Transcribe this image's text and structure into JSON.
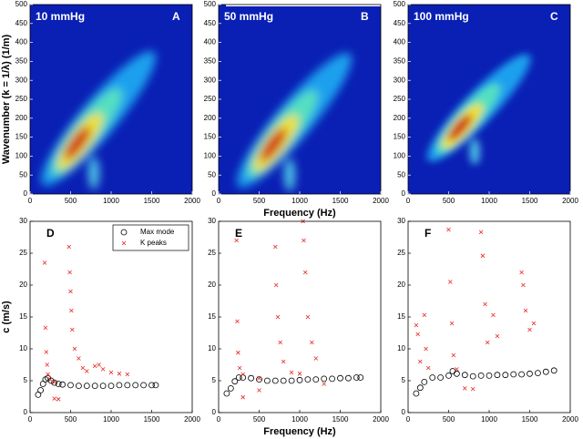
{
  "chart_data": [
    {
      "type": "image",
      "annotation": "10 mmHg",
      "panel_label": "A",
      "ylabel": "Wavenumber (k = 1/λ) (1/m)",
      "xlim": [
        0,
        2000
      ],
      "xticks": [
        0,
        500,
        1000,
        1500,
        2000
      ],
      "ylim": [
        0,
        500
      ],
      "yticks": [
        0,
        50,
        100,
        150,
        200,
        250,
        300,
        350,
        400,
        450,
        500
      ]
    },
    {
      "type": "image",
      "annotation": "50 mmHg",
      "panel_label": "B",
      "xlabel": "Frequency (Hz)",
      "xlim": [
        0,
        2000
      ],
      "xticks": [
        0,
        500,
        1000,
        1500,
        2000
      ],
      "ylim": [
        0,
        500
      ],
      "yticks": [
        0,
        50,
        100,
        150,
        200,
        250,
        300,
        350,
        400,
        450,
        500
      ]
    },
    {
      "type": "image",
      "annotation": "100 mmHg",
      "panel_label": "C",
      "xlim": [
        0,
        2000
      ],
      "xticks": [
        0,
        500,
        1000,
        1500,
        2000
      ],
      "ylim": [
        0,
        500
      ],
      "yticks": [
        0,
        50,
        100,
        150,
        200,
        250,
        300,
        350,
        400,
        450,
        500
      ]
    },
    {
      "type": "scatter",
      "panel_label": "D",
      "ylabel": "c (m/s)",
      "legend": "upper right",
      "xlim": [
        0,
        2000
      ],
      "xticks": [
        0,
        500,
        1000,
        1500,
        2000
      ],
      "ylim": [
        0,
        30
      ],
      "yticks": [
        0,
        5,
        10,
        15,
        20,
        25,
        30
      ],
      "series": [
        {
          "name": "Max mode",
          "color": "#000000",
          "marker": "o",
          "x": [
            100,
            130,
            160,
            190,
            220,
            260,
            300,
            350,
            400,
            500,
            600,
            700,
            800,
            900,
            1000,
            1100,
            1200,
            1300,
            1400,
            1500,
            1550
          ],
          "values": [
            2.8,
            3.5,
            4.5,
            5.2,
            5.4,
            5.0,
            4.7,
            4.5,
            4.4,
            4.3,
            4.2,
            4.2,
            4.2,
            4.2,
            4.2,
            4.3,
            4.3,
            4.3,
            4.3,
            4.3,
            4.3
          ]
        },
        {
          "name": "K peaks",
          "color": "#e8251f",
          "marker": "x",
          "x": [
            180,
            190,
            200,
            210,
            220,
            250,
            300,
            480,
            490,
            500,
            510,
            520,
            550,
            600,
            650,
            700,
            800,
            850,
            900,
            1000,
            1100,
            1200,
            300,
            350
          ],
          "values": [
            23.5,
            13.3,
            9.5,
            7.5,
            6,
            5.2,
            4.8,
            26,
            22,
            19,
            16,
            13,
            10,
            8.5,
            7,
            6.5,
            7.3,
            7.5,
            6.8,
            6.3,
            6.1,
            6.0,
            2.2,
            2.1
          ]
        }
      ]
    },
    {
      "type": "scatter",
      "panel_label": "E",
      "xlabel": "Frequency (Hz)",
      "xlim": [
        0,
        2000
      ],
      "xticks": [
        0,
        500,
        1000,
        1500,
        2000
      ],
      "ylim": [
        0,
        30
      ],
      "yticks": [
        0,
        5,
        10,
        15,
        20,
        25,
        30
      ],
      "series": [
        {
          "name": "Max mode",
          "color": "#000000",
          "marker": "o",
          "x": [
            100,
            150,
            200,
            250,
            300,
            400,
            500,
            600,
            700,
            800,
            900,
            1000,
            1100,
            1200,
            1300,
            1400,
            1500,
            1600,
            1700,
            1750
          ],
          "values": [
            3,
            3.8,
            4.9,
            5.5,
            5.5,
            5.4,
            5.2,
            5.0,
            5.0,
            5.0,
            5.0,
            5.1,
            5.2,
            5.2,
            5.3,
            5.3,
            5.4,
            5.4,
            5.5,
            5.5
          ]
        },
        {
          "name": "K peaks",
          "color": "#e8251f",
          "marker": "x",
          "x": [
            220,
            230,
            240,
            260,
            300,
            500,
            700,
            710,
            730,
            760,
            800,
            900,
            1000,
            1040,
            1050,
            1070,
            1100,
            1150,
            1200,
            300,
            500,
            1300
          ],
          "values": [
            27,
            14.3,
            9.4,
            7,
            6,
            5.4,
            26,
            20,
            15,
            11,
            8,
            6.3,
            6.1,
            30,
            27,
            22,
            15,
            11,
            8.5,
            2.4,
            3.5,
            4.5
          ]
        }
      ]
    },
    {
      "type": "scatter",
      "panel_label": "F",
      "xlim": [
        0,
        2000
      ],
      "xticks": [
        0,
        500,
        1000,
        1500,
        2000
      ],
      "ylim": [
        0,
        30
      ],
      "yticks": [
        0,
        5,
        10,
        15,
        20,
        25,
        30
      ],
      "series": [
        {
          "name": "Max mode",
          "color": "#000000",
          "marker": "o",
          "x": [
            100,
            150,
            200,
            300,
            400,
            500,
            550,
            600,
            700,
            800,
            900,
            1000,
            1100,
            1200,
            1300,
            1400,
            1500,
            1600,
            1700,
            1800
          ],
          "values": [
            3,
            3.9,
            4.8,
            5.5,
            5.5,
            5.8,
            6.5,
            6.1,
            5.9,
            5.7,
            5.8,
            5.8,
            5.9,
            5.9,
            6.0,
            6.0,
            6.1,
            6.2,
            6.4,
            6.6
          ]
        },
        {
          "name": "K peaks",
          "color": "#e8251f",
          "marker": "x",
          "x": [
            100,
            120,
            150,
            200,
            220,
            250,
            500,
            520,
            540,
            560,
            600,
            900,
            920,
            950,
            980,
            1050,
            1100,
            1400,
            1420,
            1450,
            1500,
            1550,
            700,
            800
          ],
          "values": [
            13.7,
            12.3,
            8,
            15.3,
            10,
            7,
            28.7,
            20.5,
            14,
            9,
            6.8,
            28.3,
            24.6,
            17,
            11,
            15.3,
            12,
            22,
            20,
            16,
            13,
            14,
            3.8,
            3.7
          ]
        }
      ]
    }
  ]
}
